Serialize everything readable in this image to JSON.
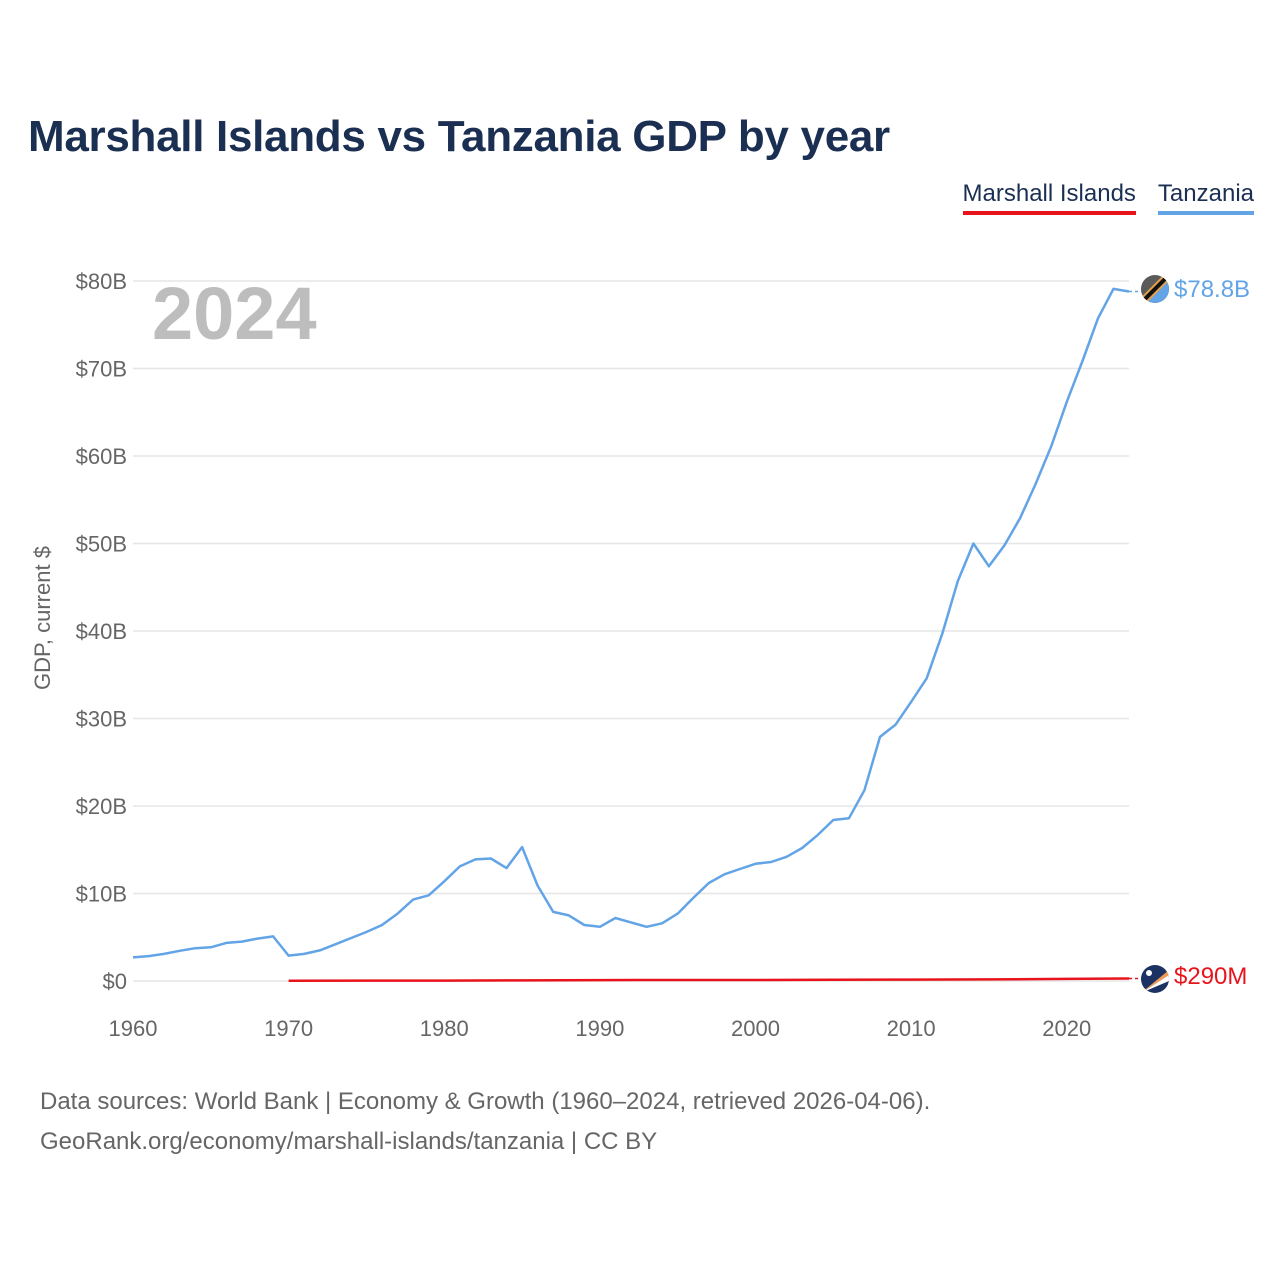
{
  "title": "Marshall Islands vs Tanzania GDP by year",
  "legend": [
    {
      "name": "Marshall Islands",
      "color": "#e8141b"
    },
    {
      "name": "Tanzania",
      "color": "#62a4e6"
    }
  ],
  "year_label": "2024",
  "end_labels": {
    "tanzania": "$78.8B",
    "marshall": "$290M"
  },
  "footer": {
    "line1": "Data sources: World Bank | Economy & Growth (1960–2024, retrieved 2026-04-06).",
    "line2": "GeoRank.org/economy/marshall-islands/tanzania | CC BY"
  },
  "flag_icons": {
    "tanzania": "tanzania-flag-icon",
    "marshall": "marshall-islands-flag-icon"
  },
  "chart_data": {
    "type": "line",
    "title": "Marshall Islands vs Tanzania GDP by year",
    "xlabel": "",
    "ylabel": "GDP, current $",
    "xlim": [
      1960,
      2024
    ],
    "ylim": [
      0,
      80
    ],
    "y_unit": "billion US$",
    "x_ticks": [
      1960,
      1970,
      1980,
      1990,
      2000,
      2010,
      2020
    ],
    "y_ticks": [
      0,
      10,
      20,
      30,
      40,
      50,
      60,
      70,
      80
    ],
    "y_tick_labels": [
      "$0",
      "$10B",
      "$20B",
      "$30B",
      "$40B",
      "$50B",
      "$60B",
      "$70B",
      "$80B"
    ],
    "series": [
      {
        "name": "Tanzania",
        "color": "#62a4e6",
        "x": [
          1960,
          1961,
          1962,
          1963,
          1964,
          1965,
          1966,
          1967,
          1968,
          1969,
          1970,
          1971,
          1972,
          1973,
          1974,
          1975,
          1976,
          1977,
          1978,
          1979,
          1980,
          1981,
          1982,
          1983,
          1984,
          1985,
          1986,
          1987,
          1988,
          1989,
          1990,
          1991,
          1992,
          1993,
          1994,
          1995,
          1996,
          1997,
          1998,
          1999,
          2000,
          2001,
          2002,
          2003,
          2004,
          2005,
          2006,
          2007,
          2008,
          2009,
          2010,
          2011,
          2012,
          2013,
          2014,
          2015,
          2016,
          2017,
          2018,
          2019,
          2020,
          2021,
          2022,
          2023,
          2024
        ],
        "values": [
          2.7,
          2.85,
          3.1,
          3.45,
          3.75,
          3.85,
          4.35,
          4.5,
          4.85,
          5.1,
          2.9,
          3.1,
          3.5,
          4.2,
          4.9,
          5.6,
          6.4,
          7.7,
          9.3,
          9.8,
          11.4,
          13.1,
          13.9,
          14.0,
          12.9,
          15.3,
          10.9,
          7.9,
          7.5,
          6.4,
          6.2,
          7.2,
          6.7,
          6.2,
          6.6,
          7.7,
          9.5,
          11.2,
          12.2,
          12.8,
          13.4,
          13.6,
          14.2,
          15.2,
          16.7,
          18.4,
          18.6,
          21.8,
          27.9,
          29.3,
          31.9,
          34.6,
          39.7,
          45.7,
          50.0,
          47.4,
          49.8,
          52.9,
          56.8,
          61.1,
          66.2,
          70.8,
          75.7,
          79.1,
          78.8
        ]
      },
      {
        "name": "Marshall Islands",
        "color": "#e8141b",
        "x": [
          1970,
          1975,
          1980,
          1985,
          1990,
          1995,
          2000,
          2005,
          2010,
          2015,
          2020,
          2024
        ],
        "values": [
          0.03,
          0.04,
          0.05,
          0.07,
          0.1,
          0.12,
          0.11,
          0.14,
          0.16,
          0.18,
          0.24,
          0.29
        ]
      }
    ]
  }
}
